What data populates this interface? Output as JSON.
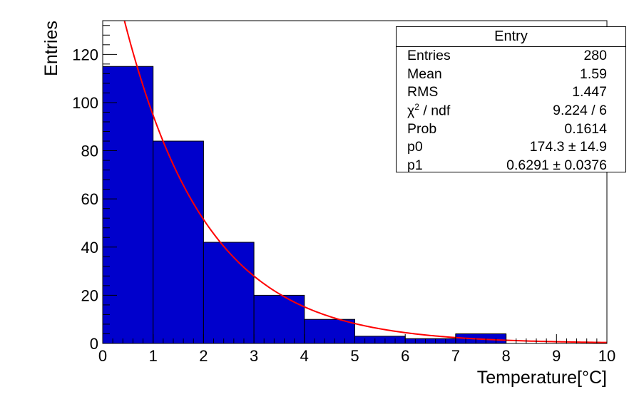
{
  "chart_data": {
    "type": "bar",
    "subtype": "histogram with exponential fit",
    "xlabel": "Temperature[°C]",
    "ylabel": "Entries",
    "xlim": [
      0,
      10
    ],
    "ylim": [
      0,
      134
    ],
    "x_ticks": [
      0,
      1,
      2,
      3,
      4,
      5,
      6,
      7,
      8,
      9,
      10
    ],
    "y_ticks": [
      0,
      20,
      40,
      60,
      80,
      100,
      120
    ],
    "bins": [
      {
        "low": 0,
        "high": 1,
        "value": 115
      },
      {
        "low": 1,
        "high": 2,
        "value": 84
      },
      {
        "low": 2,
        "high": 3,
        "value": 42
      },
      {
        "low": 3,
        "high": 4,
        "value": 20
      },
      {
        "low": 4,
        "high": 5,
        "value": 10
      },
      {
        "low": 5,
        "high": 6,
        "value": 3
      },
      {
        "low": 6,
        "high": 7,
        "value": 2
      },
      {
        "low": 7,
        "high": 8,
        "value": 4
      },
      {
        "low": 8,
        "high": 9,
        "value": 0
      },
      {
        "low": 9,
        "high": 10,
        "value": 0
      }
    ],
    "fit": {
      "p0": 174.3,
      "p1": 0.6291
    },
    "colors": {
      "bar_fill": "#0000cc",
      "fit_line": "#ff0000",
      "frame": "#000000"
    },
    "stats_box": {
      "title": "Entry",
      "rows": [
        {
          "key": "Entries",
          "value": "280"
        },
        {
          "key": "Mean",
          "value": "1.59"
        },
        {
          "key": "RMS",
          "value": "1.447"
        },
        {
          "key": "χ2 / ndf",
          "value": "9.224 / 6"
        },
        {
          "key": "Prob",
          "value": "0.1614"
        },
        {
          "key": "p0",
          "value": "174.3 ± 14.9"
        },
        {
          "key": "p1",
          "value": "0.6291 ± 0.0376"
        }
      ]
    }
  }
}
